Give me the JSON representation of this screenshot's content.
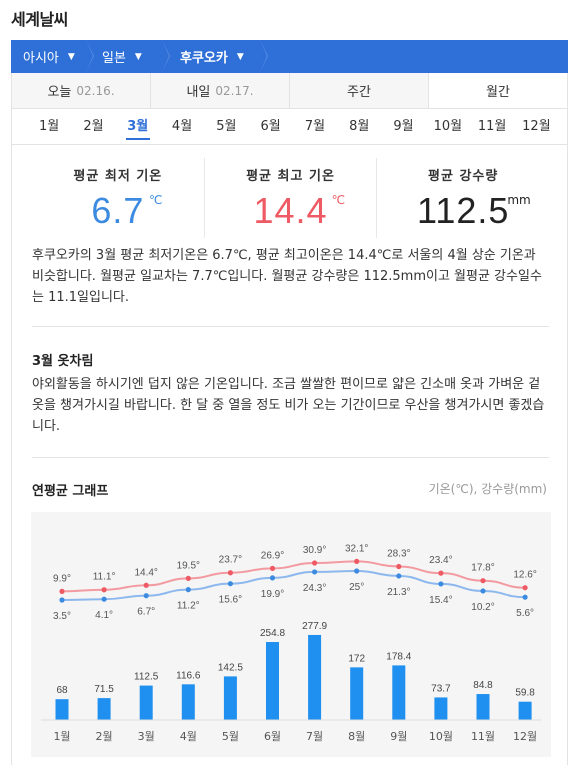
{
  "page_title": "세계날씨",
  "breadcrumb": [
    {
      "label": "아시아"
    },
    {
      "label": "일본"
    },
    {
      "label": "후쿠오카"
    }
  ],
  "day_tabs": [
    {
      "label": "오늘",
      "date": "02.16."
    },
    {
      "label": "내일",
      "date": "02.17."
    },
    {
      "label": "주간",
      "date": ""
    },
    {
      "label": "월간",
      "date": ""
    }
  ],
  "months": [
    "1월",
    "2월",
    "3월",
    "4월",
    "5월",
    "6월",
    "7월",
    "8월",
    "9월",
    "10월",
    "11월",
    "12월"
  ],
  "selected_month_index": 2,
  "stats": {
    "min": {
      "label": "평균 최저 기온",
      "value": "6.7",
      "unit": "℃"
    },
    "max": {
      "label": "평균 최고 기온",
      "value": "14.4",
      "unit": "℃"
    },
    "rain": {
      "label": "평균 강수량",
      "value": "112.5",
      "unit": "mm"
    }
  },
  "description": "후쿠오카의 3월 평균 최저기온은 6.7℃, 평균 최고이온은 14.4℃로 서울의 4월 상순 기온과 비슷합니다. 월평균 일교차는 7.7℃입니다. 월평균 강수량은 112.5mm이고 월평균 강수일수는 11.1일입니다.",
  "clothing": {
    "title": "3월 옷차림",
    "text": "야외활동을 하시기엔 덥지 않은 기온입니다. 조금 쌀쌀한 편이므로 얇은 긴소매 옷과 가벼운 겉옷을 챙겨가시길 바랍니다. 한 달 중 열을 정도 비가 오는 기간이므로 우산을 챙겨가시면 좋겠습니다."
  },
  "graph": {
    "title": "연평균 그래프",
    "note": "기온(℃), 강수량(mm)"
  },
  "colors": {
    "accent": "#2e6fd8",
    "max_line": "#ee5a63",
    "min_line": "#5a9be8",
    "bar": "#1f8ff0"
  },
  "chart_data": {
    "type": "line+bar",
    "categories": [
      "1월",
      "2월",
      "3월",
      "4월",
      "5월",
      "6월",
      "7월",
      "8월",
      "9월",
      "10월",
      "11월",
      "12월"
    ],
    "series": [
      {
        "name": "최고",
        "type": "line",
        "values": [
          9.9,
          11.1,
          14.4,
          19.5,
          23.7,
          26.9,
          30.9,
          32.1,
          28.3,
          23.4,
          17.8,
          12.6
        ]
      },
      {
        "name": "최저",
        "type": "line",
        "values": [
          3.5,
          4.1,
          6.7,
          11.2,
          15.6,
          19.9,
          24.3,
          25,
          21.3,
          15.4,
          10.2,
          5.6
        ]
      },
      {
        "name": "강수량",
        "type": "bar",
        "values": [
          68,
          71.5,
          112.5,
          116.6,
          142.5,
          254.8,
          277.9,
          172,
          178.4,
          73.7,
          84.8,
          59.8
        ]
      }
    ],
    "temp_labels_max": [
      "9.9°",
      "11.1°",
      "14.4°",
      "19.5°",
      "23.7°",
      "26.9°",
      "30.9°",
      "32.1°",
      "28.3°",
      "23.4°",
      "17.8°",
      "12.6°"
    ],
    "temp_labels_min": [
      "3.5°",
      "4.1°",
      "6.7°",
      "11.2°",
      "15.6°",
      "19.9°",
      "24.3°",
      "25°",
      "21.3°",
      "15.4°",
      "10.2°",
      "5.6°"
    ],
    "rain_labels": [
      "68",
      "71.5",
      "112.5",
      "116.6",
      "142.5",
      "254.8",
      "277.9",
      "172",
      "178.4",
      "73.7",
      "84.8",
      "59.8"
    ]
  }
}
